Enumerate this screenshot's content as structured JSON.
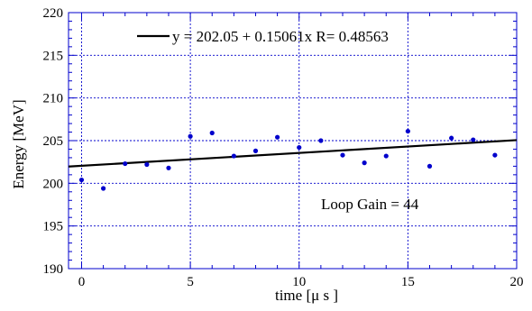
{
  "chart_data": {
    "type": "scatter",
    "xlabel": "time [μ s ]",
    "ylabel": "Energy [MeV]",
    "xlim": [
      0,
      20
    ],
    "ylim": [
      190,
      220
    ],
    "xticks": [
      0,
      5,
      10,
      15,
      20
    ],
    "yticks": [
      190,
      195,
      200,
      205,
      210,
      215,
      220
    ],
    "grid": true,
    "legend_position": "top-center",
    "series": [
      {
        "kind": "points",
        "color": "#0000cc",
        "x": [
          0,
          1,
          2,
          3,
          4,
          5,
          6,
          7,
          8,
          9,
          10,
          11,
          12,
          13,
          14,
          15,
          16,
          17,
          18,
          19
        ],
        "y": [
          200.4,
          199.4,
          202.3,
          202.2,
          201.8,
          205.5,
          205.9,
          203.2,
          203.8,
          205.4,
          204.2,
          205.0,
          203.3,
          202.4,
          203.2,
          206.1,
          202.0,
          205.3,
          205.1,
          203.3
        ]
      },
      {
        "kind": "fit-line",
        "color": "#000000",
        "intercept": 202.05,
        "slope": 0.15061,
        "legend_text": "y = 202.05 + 0.15061x R= 0.48563"
      }
    ],
    "annotations": [
      {
        "text": "Loop Gain = 44"
      }
    ]
  }
}
